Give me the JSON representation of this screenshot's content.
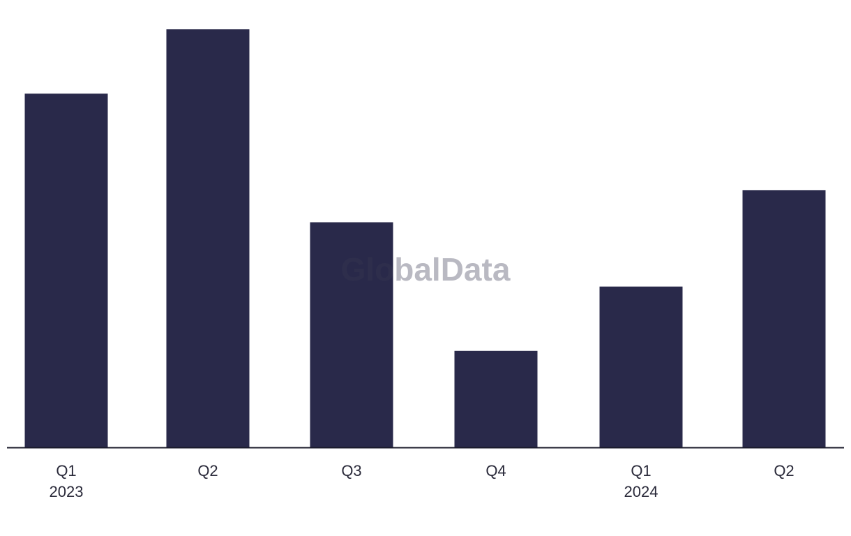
{
  "watermark": "GlobalData",
  "chart_data": {
    "type": "bar",
    "categories": [
      {
        "label": "Q1",
        "year": "2023"
      },
      {
        "label": "Q2",
        "year": ""
      },
      {
        "label": "Q3",
        "year": ""
      },
      {
        "label": "Q4",
        "year": ""
      },
      {
        "label": "Q1",
        "year": "2024"
      },
      {
        "label": "Q2",
        "year": ""
      }
    ],
    "values": [
      11,
      13,
      7,
      3,
      5,
      8
    ],
    "ylim": [
      0,
      13
    ],
    "title": "",
    "xlabel": "",
    "ylabel": "",
    "grid": false,
    "legend": "none",
    "bar_color": "#29294a",
    "axis_color": "#1a1a2a"
  }
}
